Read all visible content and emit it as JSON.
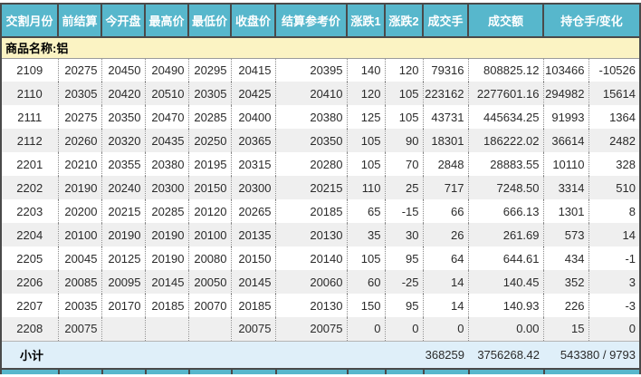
{
  "table": {
    "headers": [
      "交割月份",
      "前结算",
      "今开盘",
      "最高价",
      "最低价",
      "收盘价",
      "结算参考价",
      "涨跌1",
      "涨跌2",
      "成交手",
      "成交额",
      "持仓手/变化"
    ],
    "commodity_label": "商品名称:铝",
    "rows": [
      {
        "month": "2109",
        "prev_settle": "20275",
        "open": "20450",
        "high": "20490",
        "low": "20295",
        "close": "20415",
        "settle_ref": "20395",
        "chg1": "140",
        "chg2": "120",
        "volume": "79316",
        "turnover": "808825.12",
        "open_interest": "103466",
        "oi_change": "-10526"
      },
      {
        "month": "2110",
        "prev_settle": "20305",
        "open": "20420",
        "high": "20510",
        "low": "20305",
        "close": "20425",
        "settle_ref": "20410",
        "chg1": "120",
        "chg2": "105",
        "volume": "223162",
        "turnover": "2277601.16",
        "open_interest": "294982",
        "oi_change": "15614"
      },
      {
        "month": "2111",
        "prev_settle": "20275",
        "open": "20350",
        "high": "20470",
        "low": "20285",
        "close": "20400",
        "settle_ref": "20380",
        "chg1": "125",
        "chg2": "105",
        "volume": "43731",
        "turnover": "445634.25",
        "open_interest": "91993",
        "oi_change": "1364"
      },
      {
        "month": "2112",
        "prev_settle": "20260",
        "open": "20320",
        "high": "20435",
        "low": "20250",
        "close": "20365",
        "settle_ref": "20350",
        "chg1": "105",
        "chg2": "90",
        "volume": "18301",
        "turnover": "186222.02",
        "open_interest": "36614",
        "oi_change": "2482"
      },
      {
        "month": "2201",
        "prev_settle": "20210",
        "open": "20355",
        "high": "20380",
        "low": "20195",
        "close": "20315",
        "settle_ref": "20280",
        "chg1": "105",
        "chg2": "70",
        "volume": "2848",
        "turnover": "28883.55",
        "open_interest": "10110",
        "oi_change": "328"
      },
      {
        "month": "2202",
        "prev_settle": "20190",
        "open": "20240",
        "high": "20300",
        "low": "20150",
        "close": "20300",
        "settle_ref": "20215",
        "chg1": "110",
        "chg2": "25",
        "volume": "717",
        "turnover": "7248.50",
        "open_interest": "3314",
        "oi_change": "510"
      },
      {
        "month": "2203",
        "prev_settle": "20200",
        "open": "20215",
        "high": "20285",
        "low": "20120",
        "close": "20265",
        "settle_ref": "20185",
        "chg1": "65",
        "chg2": "-15",
        "volume": "66",
        "turnover": "666.13",
        "open_interest": "1301",
        "oi_change": "8"
      },
      {
        "month": "2204",
        "prev_settle": "20100",
        "open": "20190",
        "high": "20190",
        "low": "20100",
        "close": "20135",
        "settle_ref": "20130",
        "chg1": "35",
        "chg2": "30",
        "volume": "26",
        "turnover": "261.69",
        "open_interest": "573",
        "oi_change": "14"
      },
      {
        "month": "2205",
        "prev_settle": "20045",
        "open": "20125",
        "high": "20190",
        "low": "20080",
        "close": "20150",
        "settle_ref": "20140",
        "chg1": "105",
        "chg2": "95",
        "volume": "64",
        "turnover": "644.61",
        "open_interest": "434",
        "oi_change": "-1"
      },
      {
        "month": "2206",
        "prev_settle": "20085",
        "open": "20095",
        "high": "20145",
        "low": "20050",
        "close": "20145",
        "settle_ref": "20060",
        "chg1": "60",
        "chg2": "-25",
        "volume": "14",
        "turnover": "140.45",
        "open_interest": "352",
        "oi_change": "3"
      },
      {
        "month": "2207",
        "prev_settle": "20035",
        "open": "20170",
        "high": "20185",
        "low": "20070",
        "close": "20185",
        "settle_ref": "20130",
        "chg1": "150",
        "chg2": "95",
        "volume": "14",
        "turnover": "140.93",
        "open_interest": "226",
        "oi_change": "-3"
      },
      {
        "month": "2208",
        "prev_settle": "20075",
        "open": "",
        "high": "",
        "low": "",
        "close": "20075",
        "settle_ref": "20075",
        "chg1": "0",
        "chg2": "0",
        "volume": "0",
        "turnover": "0.00",
        "open_interest": "15",
        "oi_change": "0"
      }
    ],
    "subtotal": {
      "label": "小计",
      "volume_total": "368259",
      "turnover_total": "3756268.42",
      "open_interest_total": "543380 / 9793"
    }
  },
  "colors": {
    "header_bg": "#57b7cc",
    "frame_border": "#4a4a4a",
    "commodity_bg": "#fbf3c3",
    "alt_row_bg": "#efefef",
    "subtotal_bg": "#dfeff9"
  }
}
